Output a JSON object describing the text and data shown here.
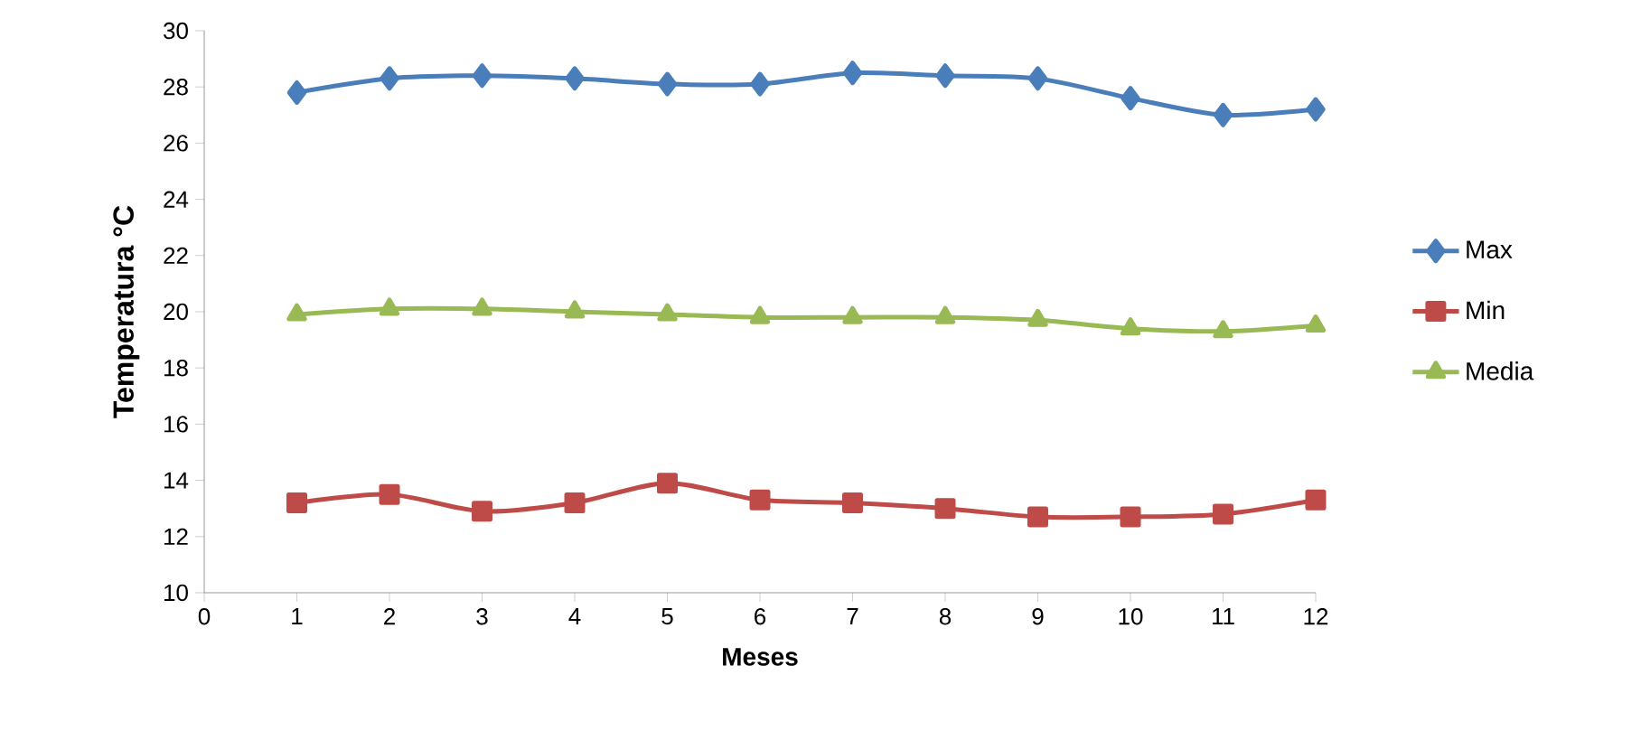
{
  "chart_data": {
    "type": "line",
    "xlabel": "Meses",
    "ylabel": "Temperatura °C",
    "x": [
      1,
      2,
      3,
      4,
      5,
      6,
      7,
      8,
      9,
      10,
      11,
      12
    ],
    "series": [
      {
        "name": "Max",
        "color": "#4a7ebb",
        "marker": "diamond",
        "values": [
          27.8,
          28.3,
          28.4,
          28.3,
          28.1,
          28.1,
          28.5,
          28.4,
          28.3,
          27.6,
          27.0,
          27.2
        ]
      },
      {
        "name": "Min",
        "color": "#be4b48",
        "marker": "square",
        "values": [
          13.2,
          13.5,
          12.9,
          13.2,
          13.9,
          13.3,
          13.2,
          13.0,
          12.7,
          12.7,
          12.8,
          13.3
        ]
      },
      {
        "name": "Media",
        "color": "#98b954",
        "marker": "triangle",
        "values": [
          19.9,
          20.1,
          20.1,
          20.0,
          19.9,
          19.8,
          19.8,
          19.8,
          19.7,
          19.4,
          19.3,
          19.5
        ]
      }
    ],
    "xlim": [
      0,
      12
    ],
    "xticks": [
      0,
      1,
      2,
      3,
      4,
      5,
      6,
      7,
      8,
      9,
      10,
      11,
      12
    ],
    "ylim": [
      10,
      30
    ],
    "yticks": [
      10,
      12,
      14,
      16,
      18,
      20,
      22,
      24,
      26,
      28,
      30
    ],
    "grid": false,
    "legend": "right"
  }
}
